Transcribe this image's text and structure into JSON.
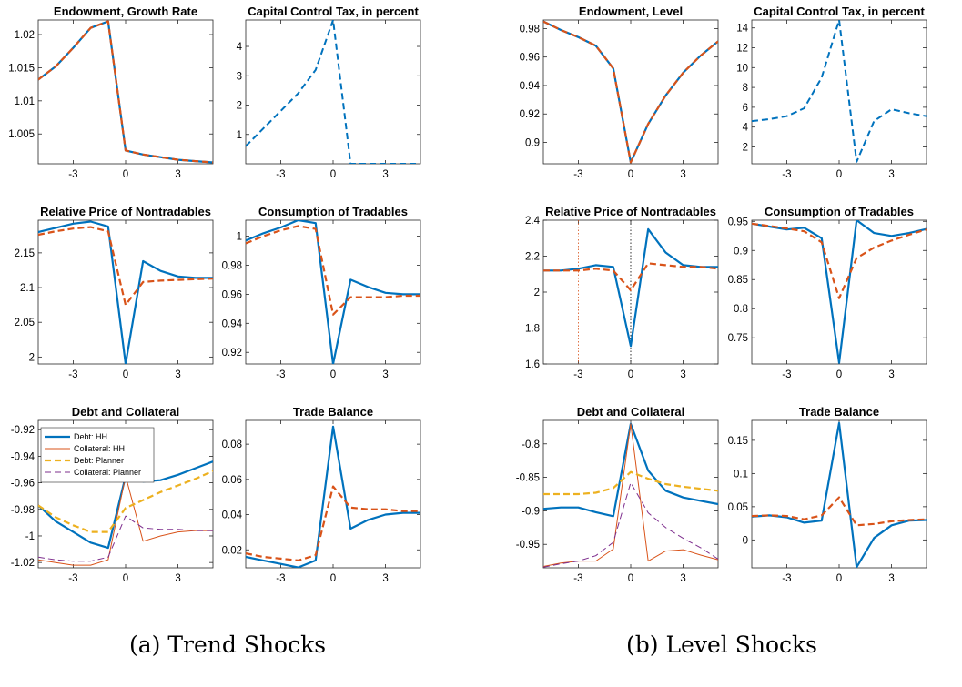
{
  "captions": {
    "a": "(a) Trend Shocks",
    "b": "(b) Level Shocks"
  },
  "colors": {
    "hh": "#0072BD",
    "planner_dashed": "#D95319",
    "debt_planner": "#EDB120",
    "collateral_planner": "#7E2F8E",
    "vline_left": "#D95319",
    "vline_zero": "#000000"
  },
  "legend": [
    "Debt: HH",
    "Collateral: HH",
    "Debt: Planner",
    "Collateral: Planner"
  ],
  "chart_data": [
    {
      "type": "line",
      "panel": "a",
      "title": "Endowment, Growth Rate",
      "x": [
        -5,
        -4,
        -3,
        -2,
        -1,
        0,
        1,
        2,
        3,
        4,
        5
      ],
      "xticks": [
        -3,
        0,
        3
      ],
      "xlim": [
        -5,
        5
      ],
      "ylim": [
        1.0005,
        1.0222
      ],
      "yticks": [
        1.005,
        1.01,
        1.015,
        1.02
      ],
      "yticklabels": [
        "1.005",
        "1.01",
        "1.015",
        "1.02"
      ],
      "series": [
        {
          "style": "hh",
          "values": [
            1.0132,
            1.0152,
            1.018,
            1.021,
            1.022,
            1.0025,
            1.0019,
            1.0015,
            1.0011,
            1.0009,
            1.0007
          ]
        },
        {
          "style": "planner",
          "values": [
            1.0132,
            1.0152,
            1.018,
            1.021,
            1.022,
            1.0025,
            1.0019,
            1.0015,
            1.0011,
            1.0009,
            1.0007
          ]
        }
      ]
    },
    {
      "type": "line",
      "panel": "a",
      "title": "Capital Control Tax, in percent",
      "x": [
        -5,
        -4,
        -3,
        -2,
        -1,
        0,
        1,
        2,
        3,
        4,
        5
      ],
      "xticks": [
        -3,
        0,
        3
      ],
      "xlim": [
        -5,
        5
      ],
      "ylim": [
        0,
        4.9
      ],
      "yticks": [
        1,
        2,
        3,
        4
      ],
      "yticklabels": [
        "1",
        "2",
        "3",
        "4"
      ],
      "series": [
        {
          "style": "hh_dash",
          "values": [
            0.6,
            1.2,
            1.8,
            2.4,
            3.2,
            4.9,
            0,
            0,
            0,
            0,
            0
          ]
        }
      ]
    },
    {
      "type": "line",
      "panel": "b",
      "title": "Endowment, Level",
      "x": [
        -5,
        -4,
        -3,
        -2,
        -1,
        0,
        1,
        2,
        3,
        4,
        5
      ],
      "xticks": [
        -3,
        0,
        3
      ],
      "xlim": [
        -5,
        5
      ],
      "ylim": [
        0.885,
        0.986
      ],
      "yticks": [
        0.9,
        0.92,
        0.94,
        0.96,
        0.98
      ],
      "yticklabels": [
        "0.9",
        "0.92",
        "0.94",
        "0.96",
        "0.98"
      ],
      "series": [
        {
          "style": "hh",
          "values": [
            0.985,
            0.979,
            0.974,
            0.968,
            0.952,
            0.886,
            0.913,
            0.933,
            0.949,
            0.961,
            0.971
          ]
        },
        {
          "style": "planner",
          "values": [
            0.985,
            0.979,
            0.974,
            0.968,
            0.952,
            0.886,
            0.913,
            0.933,
            0.949,
            0.961,
            0.971
          ]
        }
      ]
    },
    {
      "type": "line",
      "panel": "b",
      "title": "Capital Control Tax, in percent",
      "x": [
        -5,
        -4,
        -3,
        -2,
        -1,
        0,
        1,
        2,
        3,
        4,
        5
      ],
      "xticks": [
        -3,
        0,
        3
      ],
      "xlim": [
        -5,
        5
      ],
      "ylim": [
        0.3,
        14.8
      ],
      "yticks": [
        2,
        4,
        6,
        8,
        10,
        12,
        14
      ],
      "yticklabels": [
        "2",
        "4",
        "6",
        "8",
        "10",
        "12",
        "14"
      ],
      "series": [
        {
          "style": "hh_dash",
          "values": [
            4.6,
            4.8,
            5.1,
            5.9,
            9.0,
            14.8,
            0.5,
            4.6,
            5.8,
            5.4,
            5.1
          ]
        }
      ]
    },
    {
      "type": "line",
      "panel": "a",
      "title": "Relative Price of Nontradables",
      "x": [
        -5,
        -4,
        -3,
        -2,
        -1,
        0,
        1,
        2,
        3,
        4,
        5
      ],
      "xticks": [
        -3,
        0,
        3
      ],
      "xlim": [
        -5,
        5
      ],
      "ylim": [
        1.99,
        2.197
      ],
      "yticks": [
        2,
        2.05,
        2.1,
        2.15
      ],
      "yticklabels": [
        "2",
        "2.05",
        "2.1",
        "2.15"
      ],
      "series": [
        {
          "style": "hh",
          "values": [
            2.18,
            2.186,
            2.192,
            2.195,
            2.188,
            1.99,
            2.138,
            2.124,
            2.116,
            2.114,
            2.114
          ]
        },
        {
          "style": "planner",
          "values": [
            2.176,
            2.181,
            2.185,
            2.187,
            2.181,
            2.075,
            2.108,
            2.11,
            2.111,
            2.112,
            2.113
          ]
        }
      ]
    },
    {
      "type": "line",
      "panel": "a",
      "title": "Consumption of Tradables",
      "x": [
        -5,
        -4,
        -3,
        -2,
        -1,
        0,
        1,
        2,
        3,
        4,
        5
      ],
      "xticks": [
        -3,
        0,
        3
      ],
      "xlim": [
        -5,
        5
      ],
      "ylim": [
        0.912,
        1.011
      ],
      "yticks": [
        0.92,
        0.94,
        0.96,
        0.98,
        1
      ],
      "yticklabels": [
        "0.92",
        "0.94",
        "0.96",
        "0.98",
        "1"
      ],
      "series": [
        {
          "style": "hh",
          "values": [
            0.997,
            1.002,
            1.006,
            1.011,
            1.009,
            0.912,
            0.97,
            0.965,
            0.961,
            0.96,
            0.96
          ]
        },
        {
          "style": "planner",
          "values": [
            0.995,
            1.0,
            1.004,
            1.007,
            1.005,
            0.946,
            0.958,
            0.958,
            0.958,
            0.959,
            0.959
          ]
        }
      ]
    },
    {
      "type": "line",
      "panel": "b",
      "title": "Relative Price of Nontradables",
      "x": [
        -5,
        -4,
        -3,
        -2,
        -1,
        0,
        1,
        2,
        3,
        4,
        5
      ],
      "xticks": [
        -3,
        0,
        3
      ],
      "xlim": [
        -5,
        5
      ],
      "ylim": [
        1.6,
        2.4
      ],
      "yticks": [
        1.6,
        1.8,
        2,
        2.2,
        2.4
      ],
      "yticklabels": [
        "1.6",
        "1.8",
        "2",
        "2.2",
        "2.4"
      ],
      "vlines": [
        {
          "x": -3,
          "style": "vline_left"
        },
        {
          "x": 0,
          "style": "vline_zero"
        }
      ],
      "series": [
        {
          "style": "hh",
          "values": [
            2.12,
            2.12,
            2.13,
            2.15,
            2.14,
            1.7,
            2.35,
            2.22,
            2.15,
            2.14,
            2.14
          ]
        },
        {
          "style": "planner",
          "values": [
            2.12,
            2.12,
            2.12,
            2.13,
            2.12,
            2.01,
            2.16,
            2.15,
            2.14,
            2.14,
            2.13
          ]
        }
      ]
    },
    {
      "type": "line",
      "panel": "b",
      "title": "Consumption of Tradables",
      "x": [
        -5,
        -4,
        -3,
        -2,
        -1,
        0,
        1,
        2,
        3,
        4,
        5
      ],
      "xticks": [
        -3,
        0,
        3
      ],
      "xlim": [
        -5,
        5
      ],
      "ylim": [
        0.705,
        0.952
      ],
      "yticks": [
        0.75,
        0.8,
        0.85,
        0.9,
        0.95
      ],
      "yticklabels": [
        "0.75",
        "0.8",
        "0.85",
        "0.9",
        "0.95"
      ],
      "series": [
        {
          "style": "hh",
          "values": [
            0.946,
            0.941,
            0.936,
            0.939,
            0.921,
            0.707,
            0.952,
            0.93,
            0.925,
            0.93,
            0.937
          ]
        },
        {
          "style": "planner",
          "values": [
            0.946,
            0.942,
            0.938,
            0.933,
            0.914,
            0.818,
            0.887,
            0.905,
            0.917,
            0.927,
            0.936
          ]
        }
      ]
    },
    {
      "type": "line",
      "panel": "a",
      "title": "Debt and Collateral",
      "x": [
        -5,
        -4,
        -3,
        -2,
        -1,
        0,
        1,
        2,
        3,
        4,
        5
      ],
      "xticks": [
        -3,
        0,
        3
      ],
      "xlim": [
        -5,
        5
      ],
      "ylim": [
        -1.024,
        -0.913
      ],
      "yticks": [
        -1.02,
        -1,
        -0.98,
        -0.96,
        -0.94,
        -0.92
      ],
      "yticklabels": [
        "-1.02",
        "-1",
        "-0.98",
        "-0.96",
        "-0.94",
        "-0.92"
      ],
      "legend": true,
      "series": [
        {
          "style": "hh",
          "values": [
            -0.977,
            -0.989,
            -0.997,
            -1.005,
            -1.009,
            -0.955,
            -0.959,
            -0.958,
            -0.954,
            -0.949,
            -0.944
          ]
        },
        {
          "style": "hh_collat",
          "values": [
            -1.018,
            -1.02,
            -1.022,
            -1.022,
            -1.018,
            -0.955,
            -1.004,
            -1.0,
            -0.997,
            -0.996,
            -0.996
          ]
        },
        {
          "style": "debt_planner",
          "values": [
            -0.977,
            -0.986,
            -0.992,
            -0.997,
            -0.997,
            -0.979,
            -0.973,
            -0.967,
            -0.962,
            -0.957,
            -0.951
          ]
        },
        {
          "style": "collat_planner",
          "values": [
            -1.016,
            -1.018,
            -1.019,
            -1.019,
            -1.016,
            -0.985,
            -0.994,
            -0.995,
            -0.995,
            -0.996,
            -0.996
          ]
        }
      ]
    },
    {
      "type": "line",
      "panel": "a",
      "title": "Trade Balance",
      "x": [
        -5,
        -4,
        -3,
        -2,
        -1,
        0,
        1,
        2,
        3,
        4,
        5
      ],
      "xticks": [
        -3,
        0,
        3
      ],
      "xlim": [
        -5,
        5
      ],
      "ylim": [
        0.0098,
        0.0935
      ],
      "yticks": [
        0.02,
        0.04,
        0.06,
        0.08
      ],
      "yticklabels": [
        "0.02",
        "0.04",
        "0.06",
        "0.08"
      ],
      "series": [
        {
          "style": "hh",
          "values": [
            0.016,
            0.014,
            0.012,
            0.01,
            0.014,
            0.09,
            0.032,
            0.037,
            0.04,
            0.041,
            0.041
          ]
        },
        {
          "style": "planner",
          "values": [
            0.018,
            0.016,
            0.015,
            0.014,
            0.017,
            0.056,
            0.044,
            0.043,
            0.043,
            0.042,
            0.042
          ]
        }
      ]
    },
    {
      "type": "line",
      "panel": "b",
      "title": "Debt and Collateral",
      "x": [
        -5,
        -4,
        -3,
        -2,
        -1,
        0,
        1,
        2,
        3,
        4,
        5
      ],
      "xticks": [
        -3,
        0,
        3
      ],
      "xlim": [
        -5,
        5
      ],
      "ylim": [
        -0.985,
        -0.765
      ],
      "yticks": [
        -0.95,
        -0.9,
        -0.85,
        -0.8
      ],
      "yticklabels": [
        "-0.95",
        "-0.9",
        "-0.85",
        "-0.8"
      ],
      "series": [
        {
          "style": "hh",
          "values": [
            -0.897,
            -0.895,
            -0.895,
            -0.902,
            -0.908,
            -0.77,
            -0.84,
            -0.87,
            -0.88,
            -0.885,
            -0.89
          ]
        },
        {
          "style": "hh_collat",
          "values": [
            -0.983,
            -0.978,
            -0.975,
            -0.975,
            -0.957,
            -0.77,
            -0.975,
            -0.96,
            -0.958,
            -0.966,
            -0.973
          ]
        },
        {
          "style": "debt_planner",
          "values": [
            -0.875,
            -0.875,
            -0.875,
            -0.873,
            -0.866,
            -0.842,
            -0.852,
            -0.86,
            -0.864,
            -0.867,
            -0.87
          ]
        },
        {
          "style": "collat_planner",
          "values": [
            -0.984,
            -0.979,
            -0.975,
            -0.967,
            -0.947,
            -0.858,
            -0.903,
            -0.925,
            -0.941,
            -0.955,
            -0.972
          ]
        }
      ]
    },
    {
      "type": "line",
      "panel": "b",
      "title": "Trade Balance",
      "x": [
        -5,
        -4,
        -3,
        -2,
        -1,
        0,
        1,
        2,
        3,
        4,
        5
      ],
      "xticks": [
        -3,
        0,
        3
      ],
      "xlim": [
        -5,
        5
      ],
      "ylim": [
        -0.042,
        0.18
      ],
      "yticks": [
        0,
        0.05,
        0.1,
        0.15
      ],
      "yticklabels": [
        "0",
        "0.05",
        "0.1",
        "0.15"
      ],
      "series": [
        {
          "style": "hh",
          "values": [
            0.035,
            0.037,
            0.034,
            0.026,
            0.029,
            0.176,
            -0.041,
            0.003,
            0.022,
            0.029,
            0.03
          ]
        },
        {
          "style": "planner",
          "values": [
            0.036,
            0.037,
            0.036,
            0.031,
            0.037,
            0.064,
            0.022,
            0.024,
            0.028,
            0.03,
            0.031
          ]
        }
      ]
    }
  ]
}
